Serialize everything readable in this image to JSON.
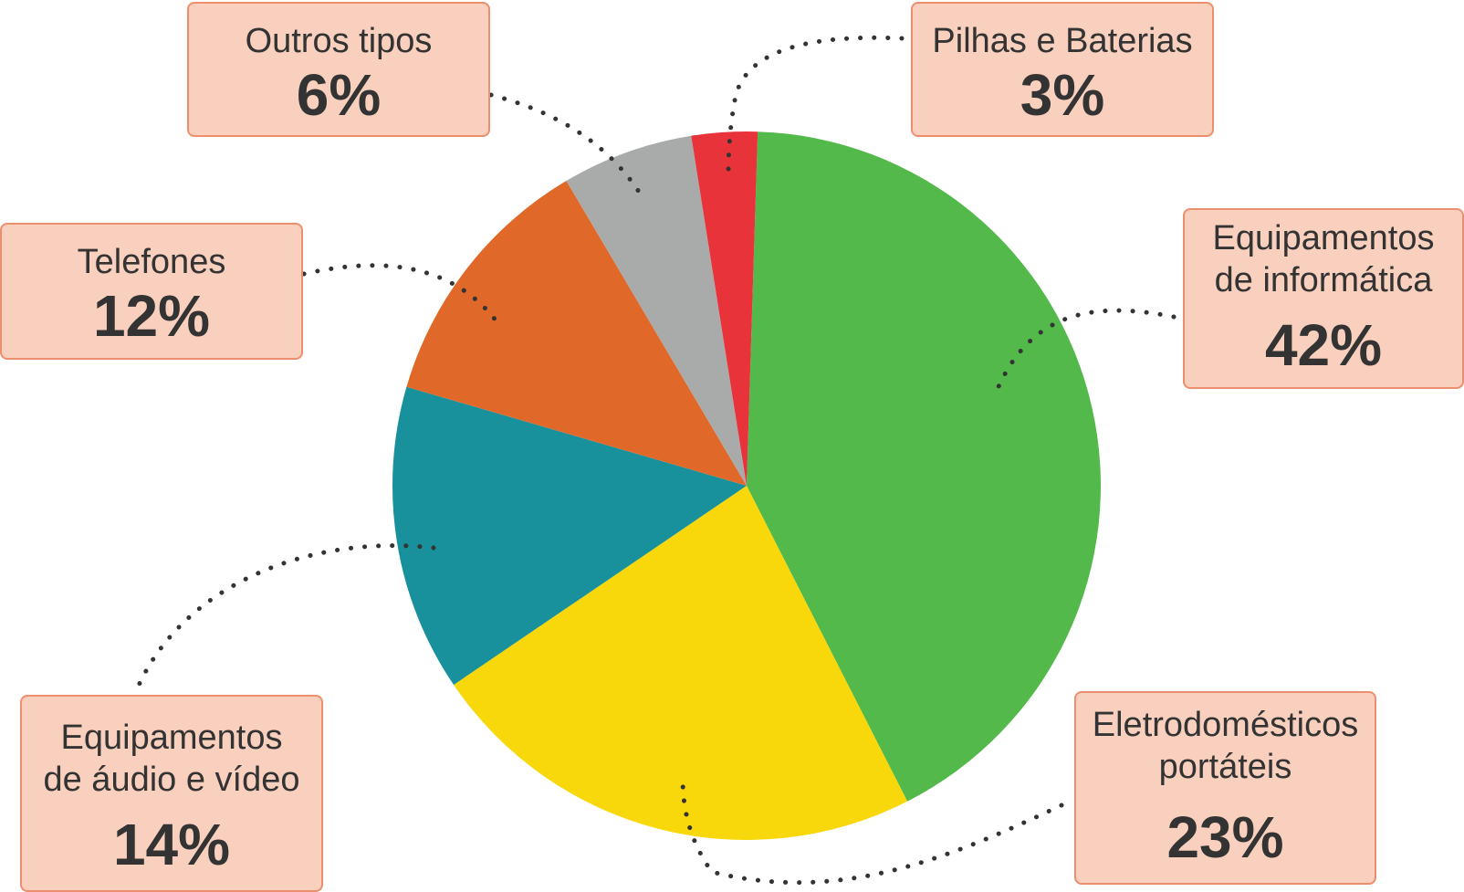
{
  "chart_data": {
    "type": "pie",
    "title": "",
    "slices": [
      {
        "label": "Equipamentos\nde informática",
        "value": 42,
        "value_label": "42%",
        "color": "#52b94a"
      },
      {
        "label": "Eletrodomésticos\nportáteis",
        "value": 23,
        "value_label": "23%",
        "color": "#f8d70b"
      },
      {
        "label": "Equipamentos\nde áudio e vídeo",
        "value": 14,
        "value_label": "14%",
        "color": "#19919c"
      },
      {
        "label": "Telefones",
        "value": 12,
        "value_label": "12%",
        "color": "#e0692a"
      },
      {
        "label": "Outros tipos",
        "value": 6,
        "value_label": "6%",
        "color": "#a9aaaa"
      },
      {
        "label": "Pilhas e Baterias",
        "value": 3,
        "value_label": "3%",
        "color": "#e8333a"
      }
    ],
    "start": "12 o'clock",
    "direction": "clockwise",
    "legend": "callout boxes with dotted leader lines"
  }
}
